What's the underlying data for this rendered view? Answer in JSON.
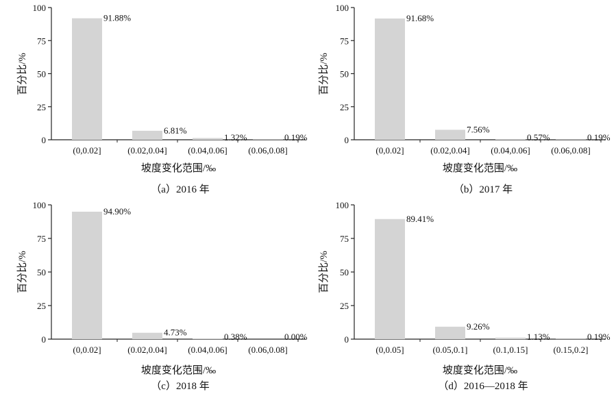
{
  "chart_data": [
    {
      "type": "bar",
      "caption": "（a）2016 年",
      "categories": [
        "(0,0.02]",
        "(0.02,0.04]",
        "(0.04,0.06]",
        "(0.06,0.08]"
      ],
      "values": [
        91.88,
        6.81,
        1.32,
        0.19
      ],
      "value_labels": [
        "91.88%",
        "6.81%",
        "1.32%",
        "0.19%"
      ],
      "xlabel": "坡度变化范围/‰",
      "ylabel": "百分比/%",
      "ylim": [
        0,
        100
      ],
      "yticks": [
        "0",
        "25",
        "50",
        "75",
        "100"
      ],
      "bar_color": "#d4d4d4",
      "grid": false
    },
    {
      "type": "bar",
      "caption": "（b）2017 年",
      "categories": [
        "(0,0.02]",
        "(0.02,0.04]",
        "(0.04,0.06]",
        "(0.06,0.08]"
      ],
      "values": [
        91.68,
        7.56,
        0.57,
        0.19
      ],
      "value_labels": [
        "91.68%",
        "7.56%",
        "0.57%",
        "0.19%"
      ],
      "xlabel": "坡度变化范围/‰",
      "ylabel": "百分比/%",
      "ylim": [
        0,
        100
      ],
      "yticks": [
        "0",
        "25",
        "50",
        "75",
        "100"
      ],
      "bar_color": "#d4d4d4",
      "grid": false
    },
    {
      "type": "bar",
      "caption": "（c）2018 年",
      "categories": [
        "(0,0.02]",
        "(0.02,0.04]",
        "(0.04,0.06]",
        "(0.06,0.08]"
      ],
      "values": [
        94.9,
        4.73,
        0.38,
        0.0
      ],
      "value_labels": [
        "94.90%",
        "4.73%",
        "0.38%",
        "0.00%"
      ],
      "xlabel": "坡度变化范围/‰",
      "ylabel": "百分比/%",
      "ylim": [
        0,
        100
      ],
      "yticks": [
        "0",
        "25",
        "50",
        "75",
        "100"
      ],
      "bar_color": "#d4d4d4",
      "grid": false
    },
    {
      "type": "bar",
      "caption": "（d）2016—2018 年",
      "categories": [
        "(0,0.05]",
        "(0.05,0.1]",
        "(0.1,0.15]",
        "(0.15,0.2]"
      ],
      "values": [
        89.41,
        9.26,
        1.13,
        0.19
      ],
      "value_labels": [
        "89.41%",
        "9.26%",
        "1.13%",
        "0.19%"
      ],
      "xlabel": "坡度变化范围/‰",
      "ylabel": "百分比/%",
      "ylim": [
        0,
        100
      ],
      "yticks": [
        "0",
        "25",
        "50",
        "75",
        "100"
      ],
      "bar_color": "#d4d4d4",
      "grid": false
    }
  ]
}
